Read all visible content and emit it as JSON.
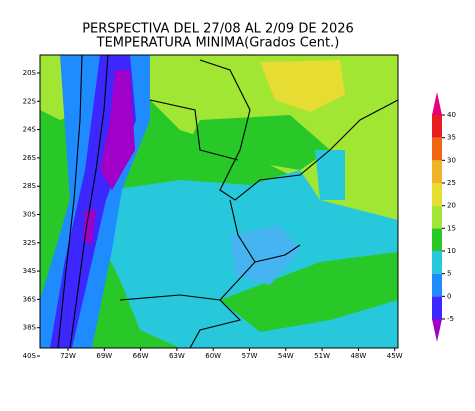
{
  "header": {
    "title_line1": "PERSPECTIVA DEL 27/08 AL 2/09 DE 2026",
    "title_line2": "TEMPERATURA MINIMA(Grados Cent.)"
  },
  "map": {
    "lat_labels": [
      "20S",
      "22S",
      "24S",
      "26S",
      "28S",
      "30S",
      "32S",
      "34S",
      "36S",
      "38S",
      "40S"
    ],
    "lon_labels": [
      "72W",
      "69W",
      "66W",
      "63W",
      "60W",
      "57W",
      "54W",
      "51W",
      "48W",
      "45W"
    ]
  },
  "colorbar": {
    "ticks": [
      -5,
      0,
      5,
      10,
      15,
      20,
      25,
      30,
      35,
      40
    ],
    "colors": [
      "#a000c8",
      "#3c28ff",
      "#1e8cff",
      "#28c8dc",
      "#28c828",
      "#a0e632",
      "#e6dc32",
      "#f0b428",
      "#f06414",
      "#e61e1e",
      "#e6007e"
    ]
  }
}
